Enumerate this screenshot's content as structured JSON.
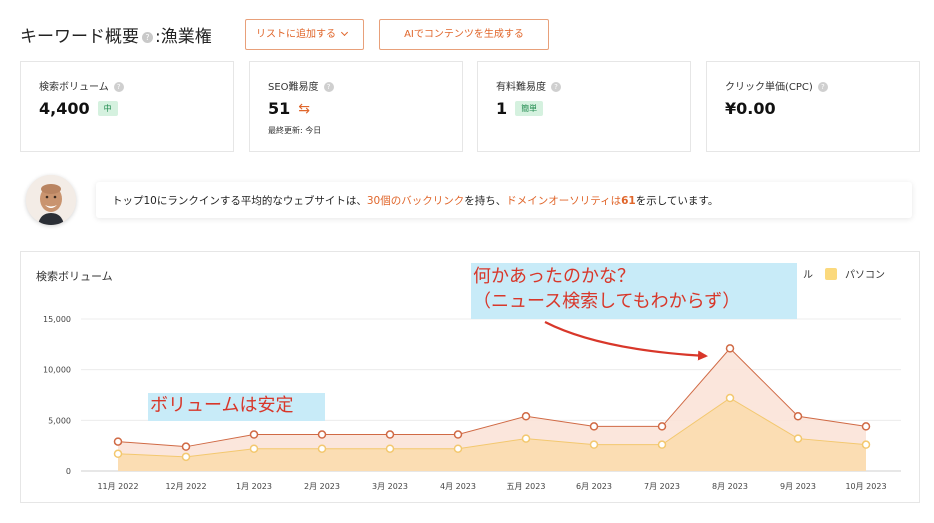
{
  "header": {
    "title": "キーワード概要",
    "help_icon_glyph": "?",
    "separator": ":",
    "keyword": "漁業権",
    "add_to_list_label": "リストに追加する",
    "ai_generate_label": "AIでコンテンツを生成する"
  },
  "metrics": [
    {
      "label": "検索ボリューム",
      "value": "4,400",
      "badge": "中"
    },
    {
      "label": "SEO難易度",
      "value": "51",
      "sub": "最終更新: 今日"
    },
    {
      "label": "有料難易度",
      "value": "1",
      "badge": "簡単"
    },
    {
      "label": "クリック単価(CPC)",
      "value": "¥0.00"
    }
  ],
  "insight": {
    "prefix": "トップ10にランクインする平均的なウェブサイトは、",
    "backlinks": "30個のバックリンク",
    "middle": "を持ち、",
    "authority_label": "ドメインオーソリティは",
    "authority_value": "61",
    "suffix": "を示しています。"
  },
  "chart": {
    "title": "検索ボリューム",
    "legend_mobile": "ル",
    "legend_desktop": "パソコン",
    "colors": {
      "total": "#d06a45",
      "desktop": "#f3c86f",
      "total_fill": "#fbe3d8",
      "desktop_fill": "#fbdcb0"
    }
  },
  "chart_data": {
    "type": "area",
    "title": "検索ボリューム",
    "categories": [
      "11月 2022",
      "12月 2022",
      "1月 2023",
      "2月 2023",
      "3月 2023",
      "4月 2023",
      "五月 2023",
      "6月 2023",
      "7月 2023",
      "8月 2023",
      "9月 2023",
      "10月 2023"
    ],
    "y_ticks": [
      "15,000",
      "10,000",
      "5,000",
      "0"
    ],
    "ylim": [
      0,
      15000
    ],
    "series": [
      {
        "values": [
          2900,
          2400,
          3600,
          3600,
          3600,
          3600,
          5400,
          4400,
          4400,
          12100,
          5400,
          4400
        ]
      },
      {
        "name": "パソコン",
        "values": [
          1700,
          1400,
          2200,
          2200,
          2200,
          2200,
          3200,
          2600,
          2600,
          7200,
          3200,
          2600
        ]
      }
    ]
  },
  "annotations": {
    "big_line1": "何かあったのかな？",
    "big_line2": "（ニュース検索してもわからず）",
    "small": "ボリュームは安定"
  }
}
